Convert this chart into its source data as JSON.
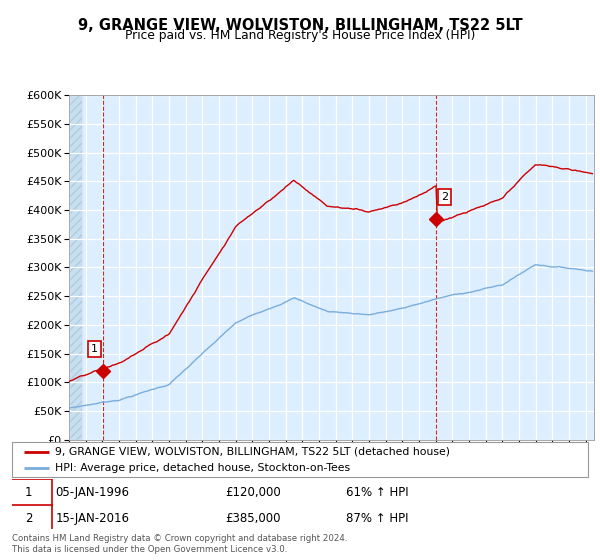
{
  "title": "9, GRANGE VIEW, WOLVISTON, BILLINGHAM, TS22 5LT",
  "subtitle": "Price paid vs. HM Land Registry's House Price Index (HPI)",
  "ylim": [
    0,
    600000
  ],
  "yticks": [
    0,
    50000,
    100000,
    150000,
    200000,
    250000,
    300000,
    350000,
    400000,
    450000,
    500000,
    550000,
    600000
  ],
  "xlim_start": 1994.0,
  "xlim_end": 2025.5,
  "bg_color": "#ddeeff",
  "sale1_date": 1996.04,
  "sale1_price": 120000,
  "sale2_date": 2016.04,
  "sale2_price": 385000,
  "legend_line1": "9, GRANGE VIEW, WOLVISTON, BILLINGHAM, TS22 5LT (detached house)",
  "legend_line2": "HPI: Average price, detached house, Stockton-on-Tees",
  "footer": "Contains HM Land Registry data © Crown copyright and database right 2024.\nThis data is licensed under the Open Government Licence v3.0.",
  "line_color_property": "#cc0000",
  "line_color_hpi": "#7aaddb"
}
